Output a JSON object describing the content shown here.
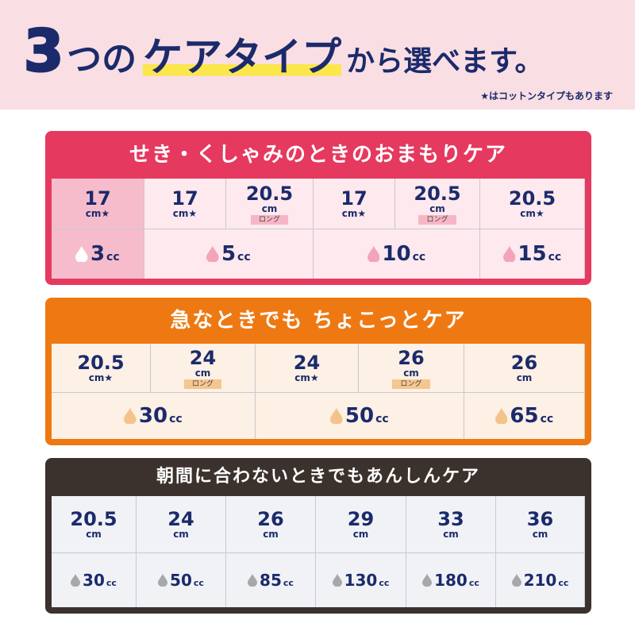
{
  "header": {
    "title_num": "3",
    "title_mid": "つの",
    "title_highlight": "ケアタイプ",
    "title_end": "から選べます。",
    "note_star": "★",
    "note": "はコットンタイプもあります"
  },
  "sections": [
    {
      "title": "せき・くしゃみのときのおまもりケア",
      "sizes": [
        {
          "length": "17",
          "unit": "cm",
          "star": "★"
        },
        {
          "length": "17",
          "unit": "cm",
          "star": "★"
        },
        {
          "length": "20.5",
          "unit": "cm",
          "tag": "ロング"
        },
        {
          "length": "17",
          "unit": "cm",
          "star": "★"
        },
        {
          "length": "20.5",
          "unit": "cm",
          "tag": "ロング"
        },
        {
          "length": "20.5",
          "unit": "cm",
          "star": "★"
        }
      ],
      "capacities": [
        {
          "value": 3,
          "unit": "cc"
        },
        {
          "value": 5,
          "unit": "cc"
        },
        {
          "value": 10,
          "unit": "cc"
        },
        {
          "value": 15,
          "unit": "cc"
        }
      ]
    },
    {
      "title": "急なときでも ちょこっとケア",
      "sizes": [
        {
          "length": "20.5",
          "unit": "cm",
          "star": "★"
        },
        {
          "length": "24",
          "unit": "cm",
          "tag": "ロング"
        },
        {
          "length": "24",
          "unit": "cm",
          "star": "★"
        },
        {
          "length": "26",
          "unit": "cm",
          "tag": "ロング"
        },
        {
          "length": "26",
          "unit": "cm"
        }
      ],
      "capacities": [
        {
          "value": 30,
          "unit": "cc"
        },
        {
          "value": 50,
          "unit": "cc"
        },
        {
          "value": 65,
          "unit": "cc"
        }
      ]
    },
    {
      "title": "朝間に合わないときでもあんしんケア",
      "sizes": [
        {
          "length": "20.5",
          "unit": "cm"
        },
        {
          "length": "24",
          "unit": "cm"
        },
        {
          "length": "26",
          "unit": "cm"
        },
        {
          "length": "29",
          "unit": "cm"
        },
        {
          "length": "33",
          "unit": "cm"
        },
        {
          "length": "36",
          "unit": "cm"
        }
      ],
      "capacities": [
        {
          "value": 30,
          "unit": "cc"
        },
        {
          "value": 50,
          "unit": "cc"
        },
        {
          "value": 85,
          "unit": "cc"
        },
        {
          "value": 130,
          "unit": "cc"
        },
        {
          "value": 180,
          "unit": "cc"
        },
        {
          "value": 210,
          "unit": "cc"
        }
      ]
    }
  ]
}
